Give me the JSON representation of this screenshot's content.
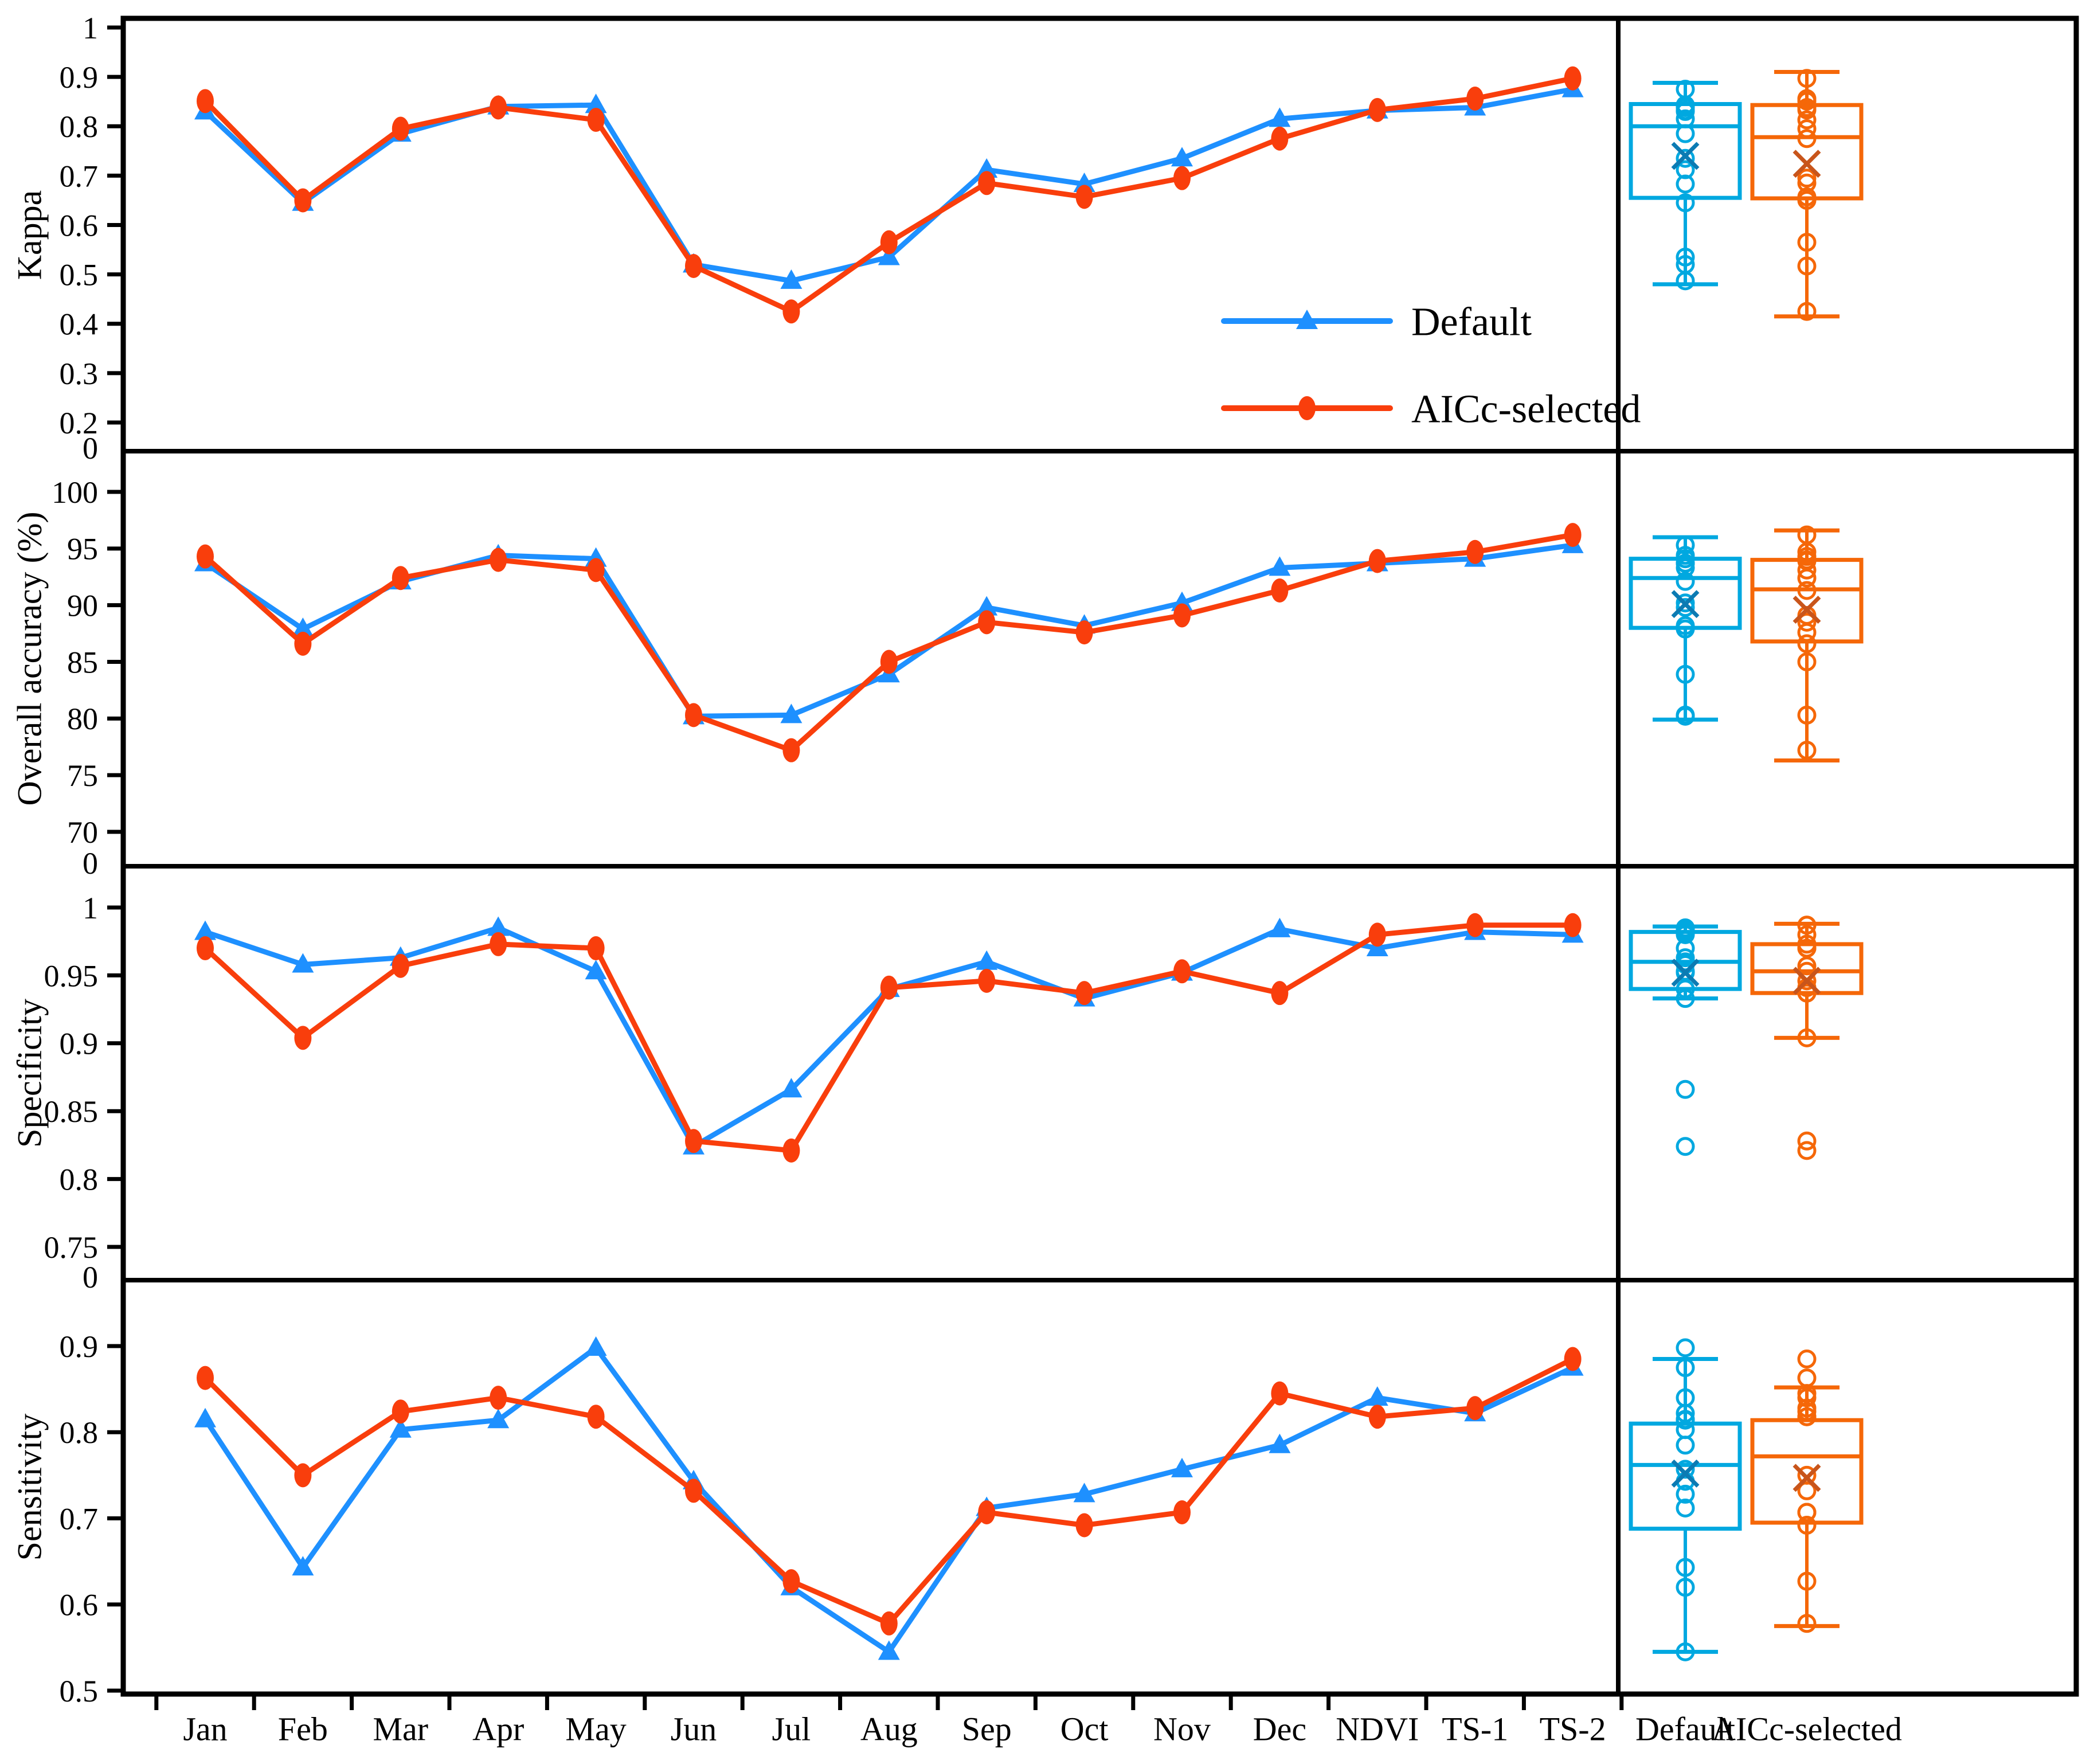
{
  "chart_data": {
    "type": "line+box",
    "categories": [
      "Jan",
      "Feb",
      "Mar",
      "Apr",
      "May",
      "Jun",
      "Jul",
      "Aug",
      "Sep",
      "Oct",
      "Nov",
      "Dec",
      "NDVI",
      "TS-1",
      "TS-2"
    ],
    "legend_position": "inside-top-panel-right",
    "grid": false,
    "colors": {
      "default_line": "#1E90FF",
      "default_box": "#00A8E0",
      "default_mean": "#0C7BB3",
      "aicc_line": "#F93E0C",
      "aicc_box": "#F56708",
      "aicc_mean": "#C8551B",
      "axis": "#000000"
    },
    "box_columns": [
      "Default",
      "AICc-selected"
    ],
    "panels": [
      {
        "ylabel": "Kappa",
        "tick_labels": [
          "1",
          "0.9",
          "0.8",
          "0.7",
          "0.6",
          "0.5",
          "0.4",
          "0.3",
          "0.2"
        ],
        "tick_values": [
          1,
          0.9,
          0.8,
          0.7,
          0.6,
          0.5,
          0.4,
          0.3,
          0.2
        ],
        "zero_label": "0",
        "ylim": [
          0.2,
          1.0
        ],
        "series": [
          {
            "name": "Default",
            "marker": "triangle",
            "values": [
              0.83,
              0.645,
              0.785,
              0.84,
              0.843,
              0.52,
              0.487,
              0.535,
              0.712,
              0.683,
              0.735,
              0.815,
              0.832,
              0.838,
              0.875
            ]
          },
          {
            "name": "AICc-selected",
            "marker": "circle",
            "values": [
              0.851,
              0.65,
              0.795,
              0.838,
              0.813,
              0.517,
              0.425,
              0.565,
              0.685,
              0.657,
              0.695,
              0.775,
              0.833,
              0.856,
              0.897
            ]
          }
        ],
        "boxes": [
          {
            "name": "Default",
            "low": 0.48,
            "q1": 0.655,
            "median": 0.8,
            "q3": 0.845,
            "high": 0.888,
            "mean": 0.74
          },
          {
            "name": "AICc-selected",
            "low": 0.415,
            "q1": 0.654,
            "median": 0.778,
            "q3": 0.843,
            "high": 0.91,
            "mean": 0.724
          }
        ]
      },
      {
        "ylabel": "Overall accuracy (%)",
        "tick_labels": [
          "100",
          "95",
          "90",
          "85",
          "80",
          "75",
          "70"
        ],
        "tick_values": [
          100,
          95,
          90,
          85,
          80,
          75,
          70
        ],
        "zero_label": "0",
        "ylim": [
          70,
          100
        ],
        "series": [
          {
            "name": "Default",
            "marker": "triangle",
            "values": [
              93.7,
              87.9,
              92.1,
              94.4,
              94.1,
              80.2,
              80.3,
              83.9,
              89.8,
              88.2,
              90.2,
              93.3,
              93.7,
              94.1,
              95.3
            ]
          },
          {
            "name": "AICc-selected",
            "marker": "circle",
            "values": [
              94.3,
              86.6,
              92.4,
              94.0,
              93.1,
              80.3,
              77.2,
              85.0,
              88.5,
              87.6,
              89.1,
              91.3,
              93.9,
              94.7,
              96.2
            ]
          }
        ],
        "boxes": [
          {
            "name": "Default",
            "low": 79.9,
            "q1": 88.0,
            "median": 92.4,
            "q3": 94.1,
            "high": 96.0,
            "mean": 90.1
          },
          {
            "name": "AICc-selected",
            "low": 76.3,
            "q1": 86.8,
            "median": 91.4,
            "q3": 94.0,
            "high": 96.6,
            "mean": 89.6
          }
        ]
      },
      {
        "ylabel": "Specificity",
        "tick_labels": [
          "1",
          "0.95",
          "0.9",
          "0.85",
          "0.8",
          "0.75"
        ],
        "tick_values": [
          1,
          0.95,
          0.9,
          0.85,
          0.8,
          0.75
        ],
        "zero_label": "0",
        "ylim": [
          0.75,
          1.0
        ],
        "series": [
          {
            "name": "Default",
            "marker": "triangle",
            "values": [
              0.982,
              0.958,
              0.963,
              0.985,
              0.953,
              0.824,
              0.866,
              0.94,
              0.96,
              0.933,
              0.952,
              0.984,
              0.97,
              0.982,
              0.98
            ]
          },
          {
            "name": "AICc-selected",
            "marker": "circle",
            "values": [
              0.97,
              0.904,
              0.957,
              0.973,
              0.97,
              0.828,
              0.821,
              0.941,
              0.946,
              0.937,
              0.953,
              0.937,
              0.98,
              0.987,
              0.987
            ]
          }
        ],
        "boxes": [
          {
            "name": "Default",
            "low": 0.933,
            "q1": 0.94,
            "median": 0.96,
            "q3": 0.982,
            "high": 0.986,
            "mean": 0.952
          },
          {
            "name": "AICc-selected",
            "low": 0.904,
            "q1": 0.937,
            "median": 0.953,
            "q3": 0.973,
            "high": 0.988,
            "mean": 0.946
          }
        ]
      },
      {
        "ylabel": "Sensitivity",
        "tick_labels": [
          "0.9",
          "0.8",
          "0.7",
          "0.6",
          "0.5"
        ],
        "tick_values": [
          0.9,
          0.8,
          0.7,
          0.6,
          0.5
        ],
        "zero_label": null,
        "ylim": [
          0.5,
          0.9
        ],
        "series": [
          {
            "name": "Default",
            "marker": "triangle",
            "values": [
              0.815,
              0.643,
              0.803,
              0.814,
              0.898,
              0.743,
              0.62,
              0.545,
              0.712,
              0.728,
              0.757,
              0.785,
              0.84,
              0.822,
              0.875
            ]
          },
          {
            "name": "AICc-selected",
            "marker": "circle",
            "values": [
              0.863,
              0.75,
              0.824,
              0.84,
              0.818,
              0.732,
              0.627,
              0.578,
              0.707,
              0.692,
              0.707,
              0.845,
              0.818,
              0.828,
              0.885
            ]
          }
        ],
        "boxes": [
          {
            "name": "Default",
            "low": 0.545,
            "q1": 0.688,
            "median": 0.762,
            "q3": 0.81,
            "high": 0.885,
            "mean": 0.752
          },
          {
            "name": "AICc-selected",
            "low": 0.575,
            "q1": 0.695,
            "median": 0.772,
            "q3": 0.814,
            "high": 0.852,
            "mean": 0.747
          }
        ]
      }
    ]
  }
}
